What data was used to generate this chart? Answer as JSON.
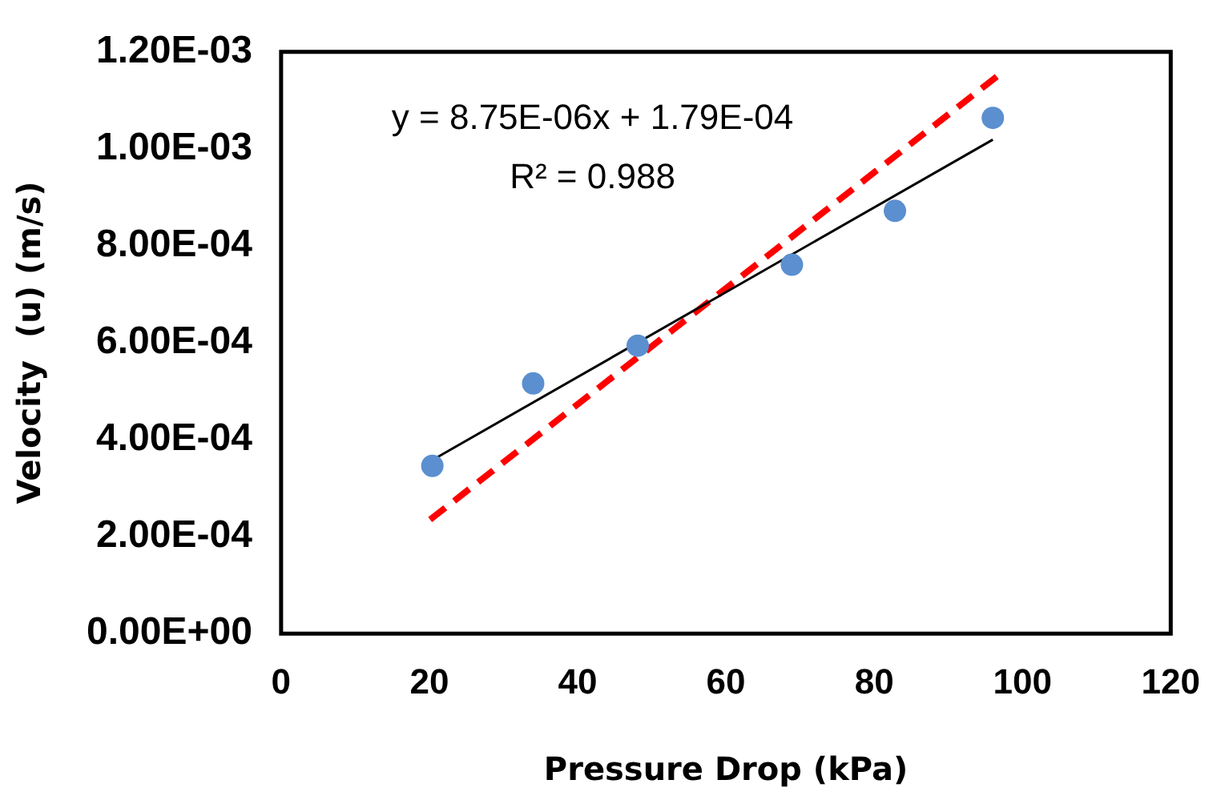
{
  "chart_data": {
    "type": "scatter",
    "xlabel": "Pressure Drop (kPa)",
    "ylabel": "Velocity  (u) (m/s)",
    "xlim": [
      0,
      120
    ],
    "xticks": [
      0,
      20,
      40,
      60,
      80,
      100,
      120
    ],
    "ylim": [
      0,
      0.0012
    ],
    "yticks": [
      {
        "value": 0,
        "label": "0.00E+00"
      },
      {
        "value": 0.0002,
        "label": "2.00E-04"
      },
      {
        "value": 0.0004,
        "label": "4.00E-04"
      },
      {
        "value": 0.0006,
        "label": "6.00E-04"
      },
      {
        "value": 0.0008,
        "label": "8.00E-04"
      },
      {
        "value": 0.001,
        "label": "1.00E-03"
      },
      {
        "value": 0.0012,
        "label": "1.20E-03"
      }
    ],
    "grid": false,
    "legend": false,
    "series": [
      {
        "type": "scatter",
        "color": "#5b8fd0",
        "marker": "circle",
        "x": [
          20.4,
          34.0,
          48.1,
          68.9,
          82.8,
          96.0
        ],
        "values": [
          0.000346,
          0.000516,
          0.000594,
          0.000761,
          0.000872,
          0.001064
        ]
      },
      {
        "type": "line",
        "color": "#000000",
        "marker": "none",
        "line_style": "solid",
        "x": [
          20.4,
          96.0
        ],
        "values": [
          0.000358,
          0.001019
        ]
      },
      {
        "type": "line",
        "color": "#ff0000",
        "marker": "none",
        "line_style": "dashed",
        "x": [
          20.1,
          96.7
        ],
        "values": [
          0.000235,
          0.001151
        ]
      }
    ],
    "annotations": [
      "y = 8.75E-06x + 1.79E-04",
      "R² = 0.988"
    ]
  }
}
